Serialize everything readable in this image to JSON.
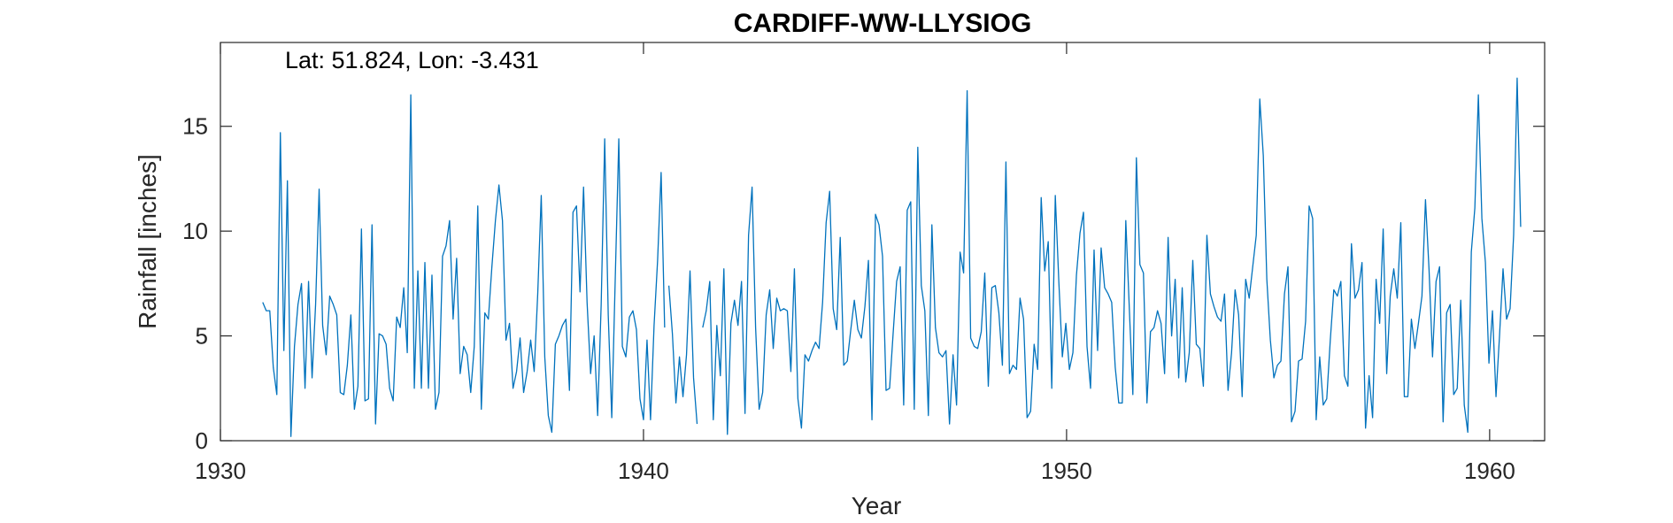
{
  "chart_data": {
    "type": "line",
    "title": "CARDIFF-WW-LLYSIOG",
    "annotation": "Lat: 51.824, Lon: -3.431",
    "xlabel": "Year",
    "ylabel": "Rainfall [inches]",
    "xlim": [
      1930,
      1961.3
    ],
    "ylim": [
      0,
      19
    ],
    "xticks": [
      1930,
      1940,
      1950,
      1960
    ],
    "yticks": [
      0,
      5,
      10,
      15
    ],
    "grid": false,
    "line_color": "#0072BD",
    "series": [
      {
        "segments": [
          {
            "start_year": 1931.0,
            "step_months": 1,
            "values": [
              6.6,
              6.2,
              6.2,
              3.5,
              2.2,
              14.7,
              4.3,
              12.4,
              0.2,
              4.5,
              6.5,
              7.5,
              2.5,
              7.6,
              3.0,
              6.5,
              12.0,
              5.5,
              4.1,
              6.9,
              6.5,
              6.0,
              2.3,
              2.2,
              3.6,
              6.0,
              1.5,
              2.6,
              10.1,
              1.9,
              2.0,
              10.3,
              0.8,
              5.1,
              5.0,
              4.6,
              2.5,
              1.9,
              5.9,
              5.4,
              7.3,
              4.2,
              16.5,
              2.5,
              8.1,
              2.5,
              8.5,
              2.5,
              7.9,
              1.5,
              2.3,
              8.8,
              9.3,
              10.5,
              5.8,
              8.7,
              3.2,
              4.5,
              4.1,
              2.3,
              4.5,
              11.2,
              1.5,
              6.1,
              5.8,
              8.3,
              10.5,
              12.2,
              10.5,
              4.8,
              5.6,
              2.5,
              3.3,
              4.9,
              2.3,
              3.3,
              4.8,
              3.3,
              7.0,
              11.7,
              4.0,
              1.2,
              0.4,
              4.6,
              5.0,
              5.5,
              5.8,
              2.4,
              10.9,
              11.2,
              7.1,
              12.1,
              6.6,
              3.2,
              5.0,
              1.2,
              6.5,
              14.4,
              6.0,
              1.1,
              7.8,
              14.4,
              4.5,
              4.0,
              5.9,
              6.2,
              5.3,
              2.0,
              1.0,
              4.8,
              1.0,
              5.5,
              8.6,
              12.8,
              5.4
            ]
          },
          {
            "start_year": 1940.6,
            "step_months": 1,
            "values": [
              7.4,
              5.1,
              1.8,
              4.0,
              2.1,
              4.1,
              8.1,
              3.0,
              0.8
            ]
          },
          {
            "start_year": 1941.4,
            "step_months": 1,
            "values": [
              5.4,
              6.2,
              7.6,
              1.0,
              5.5,
              3.1,
              8.2,
              0.3,
              5.6,
              6.7,
              5.5,
              7.6,
              1.3,
              9.8,
              12.1,
              5.4,
              1.5,
              2.3,
              6.0,
              7.2,
              4.4,
              6.8,
              6.2,
              6.3,
              6.2,
              3.3,
              8.2,
              2.0,
              0.6,
              4.1,
              3.8,
              4.3,
              4.7,
              4.4,
              6.6,
              10.4,
              11.9,
              6.3,
              5.3,
              9.7,
              3.6,
              3.8,
              5.3,
              6.7,
              5.3,
              4.9,
              6.4,
              8.6,
              1.0,
              10.8,
              10.3,
              8.8,
              2.4,
              2.5,
              5.1,
              7.6,
              8.3,
              1.7,
              11.0,
              11.4,
              1.5,
              14.0,
              7.4,
              6.2,
              1.2,
              10.3,
              5.4,
              4.2,
              4.0,
              4.3,
              0.8,
              4.1,
              1.7,
              9.0,
              8.0,
              16.7,
              4.9,
              4.5,
              4.4,
              5.2,
              8.0,
              2.6,
              7.3,
              7.4,
              6.1,
              3.6,
              13.3,
              3.2,
              3.6,
              3.4,
              6.8,
              5.8,
              1.1,
              1.4,
              4.6,
              3.4,
              11.6,
              8.1,
              9.5,
              2.5,
              11.7,
              7.6,
              4.0,
              5.6,
              3.4,
              4.2,
              7.9,
              9.9,
              10.9,
              4.5,
              2.5,
              9.1,
              4.3,
              9.2,
              7.3,
              7.0,
              6.6,
              3.5,
              1.8,
              1.8,
              10.5,
              6.3,
              2.2,
              13.5,
              8.4,
              8.0,
              1.8,
              5.2,
              5.4,
              6.2,
              5.6,
              3.2,
              9.7,
              5.0,
              7.7,
              3.0,
              7.3,
              2.8,
              4.2,
              8.6,
              4.6,
              4.4,
              2.6,
              9.8,
              7.0,
              6.4,
              5.9,
              5.7,
              7.0,
              2.4,
              4.2,
              7.2,
              6.0,
              2.1,
              7.7,
              6.8,
              8.3,
              9.8,
              16.3,
              13.6,
              7.7,
              4.8,
              3.0,
              3.6,
              3.8,
              7.0,
              8.3,
              0.9,
              1.4,
              3.8,
              3.9,
              5.7,
              11.2,
              10.6,
              1.0,
              4.0,
              1.7,
              2.0,
              4.8,
              7.2,
              6.9,
              7.6,
              3.1,
              2.6,
              9.4,
              6.8,
              7.2,
              8.5,
              0.6,
              3.1,
              1.1,
              7.7,
              5.6,
              10.1,
              3.2,
              6.9,
              8.2,
              6.8,
              10.4,
              2.1,
              2.1,
              5.8,
              4.4,
              5.6,
              6.9,
              11.5,
              8.2,
              4.0,
              7.6,
              8.3,
              0.9,
              6.1,
              6.5,
              2.2,
              2.5,
              6.7,
              1.7,
              0.4,
              9.0,
              11.1,
              16.5,
              10.6,
              8.5,
              3.7,
              6.2,
              2.1,
              5.0,
              8.2,
              5.8,
              6.3,
              9.8,
              17.3,
              10.2
            ]
          }
        ]
      }
    ]
  }
}
